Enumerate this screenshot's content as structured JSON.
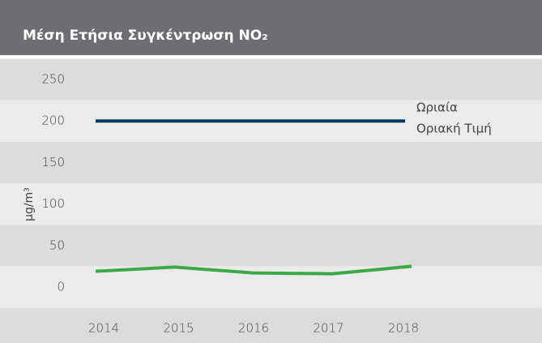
{
  "chart_data": {
    "type": "line",
    "title": "Μέση Ετήσια Συγκέντρωση NO₂",
    "y_label": "μg/m³",
    "categories": [
      "2014",
      "2015",
      "2016",
      "2017",
      "2018"
    ],
    "series": [
      {
        "color": "#3aaa47",
        "values": [
          19,
          24,
          17,
          16,
          25
        ]
      }
    ],
    "reference_lines": [
      {
        "value": 200,
        "label": [
          "Ωριαία",
          "Οριακή Τιμή"
        ],
        "color": "#003a5d"
      }
    ],
    "ylim": [
      0,
      250
    ],
    "yticks": [
      0,
      50,
      100,
      150,
      200,
      250
    ],
    "banded": true
  }
}
